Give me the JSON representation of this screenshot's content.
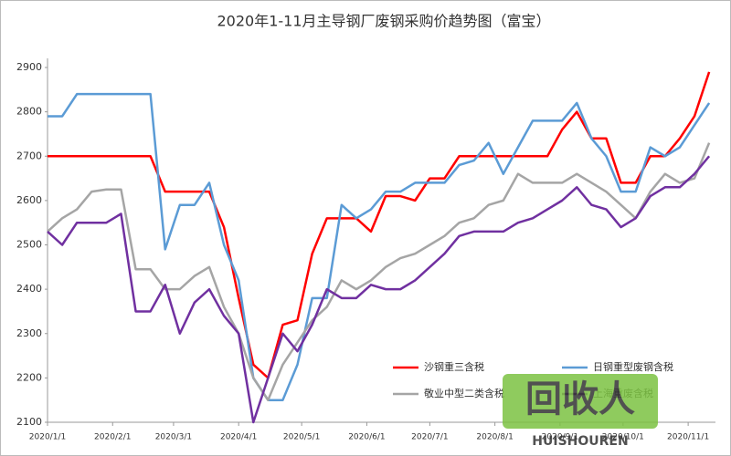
{
  "chart_data": {
    "type": "line",
    "title": "2020年1-11月主导钢厂废钢采购价趋势图（富宝）",
    "x": [
      "2020/1/1",
      "2020/1/8",
      "2020/1/15",
      "2020/1/22",
      "2020/1/29",
      "2020/2/5",
      "2020/2/12",
      "2020/2/19",
      "2020/2/26",
      "2020/3/4",
      "2020/3/11",
      "2020/3/18",
      "2020/3/25",
      "2020/4/1",
      "2020/4/8",
      "2020/4/15",
      "2020/4/22",
      "2020/4/29",
      "2020/5/6",
      "2020/5/13",
      "2020/5/20",
      "2020/5/27",
      "2020/6/3",
      "2020/6/10",
      "2020/6/17",
      "2020/6/24",
      "2020/7/1",
      "2020/7/8",
      "2020/7/15",
      "2020/7/22",
      "2020/7/29",
      "2020/8/5",
      "2020/8/12",
      "2020/8/19",
      "2020/8/26",
      "2020/9/2",
      "2020/9/9",
      "2020/9/16",
      "2020/9/23",
      "2020/9/30",
      "2020/10/7",
      "2020/10/14",
      "2020/10/21",
      "2020/10/28",
      "2020/11/4",
      "2020/11/11"
    ],
    "series": [
      {
        "name": "沙钢重三含税",
        "color": "#ff0000",
        "values": [
          2700,
          2700,
          2700,
          2700,
          2700,
          2700,
          2700,
          2700,
          2620,
          2620,
          2620,
          2620,
          2540,
          2380,
          2230,
          2200,
          2320,
          2330,
          2480,
          2560,
          2560,
          2560,
          2530,
          2610,
          2610,
          2600,
          2650,
          2650,
          2700,
          2700,
          2700,
          2700,
          2700,
          2700,
          2700,
          2760,
          2800,
          2740,
          2740,
          2640,
          2640,
          2700,
          2700,
          2740,
          2790,
          2890
        ]
      },
      {
        "name": "日钢重型废钢含税",
        "color": "#5b9bd5",
        "values": [
          2790,
          2790,
          2840,
          2840,
          2840,
          2840,
          2840,
          2840,
          2490,
          2590,
          2590,
          2640,
          2500,
          2420,
          2200,
          2150,
          2150,
          2230,
          2380,
          2380,
          2590,
          2560,
          2580,
          2620,
          2620,
          2640,
          2640,
          2640,
          2680,
          2690,
          2730,
          2660,
          2720,
          2780,
          2780,
          2780,
          2820,
          2740,
          2700,
          2620,
          2620,
          2720,
          2700,
          2720,
          2770,
          2820
        ]
      },
      {
        "name": "敬业中型二类含税",
        "color": "#a5a5a5",
        "values": [
          2530,
          2560,
          2580,
          2620,
          2625,
          2625,
          2445,
          2445,
          2400,
          2400,
          2430,
          2450,
          2360,
          2300,
          2200,
          2150,
          2230,
          2280,
          2330,
          2360,
          2420,
          2400,
          2420,
          2450,
          2470,
          2480,
          2500,
          2520,
          2550,
          2560,
          2590,
          2600,
          2660,
          2640,
          2640,
          2640,
          2660,
          2640,
          2620,
          2590,
          2560,
          2620,
          2660,
          2640,
          2650,
          2730
        ]
      },
      {
        "name": "上海重废含税",
        "color": "#7030a0",
        "values": [
          2530,
          2500,
          2550,
          2550,
          2550,
          2570,
          2350,
          2350,
          2410,
          2300,
          2370,
          2400,
          2340,
          2300,
          2100,
          2200,
          2300,
          2260,
          2320,
          2400,
          2380,
          2380,
          2410,
          2400,
          2400,
          2420,
          2450,
          2480,
          2520,
          2530,
          2530,
          2530,
          2550,
          2560,
          2580,
          2600,
          2630,
          2590,
          2580,
          2540,
          2560,
          2610,
          2630,
          2630,
          2660,
          2700
        ]
      }
    ],
    "xlim": [
      "2020/1/1",
      "2020/11/14"
    ],
    "xticks": [
      "2020/1/1",
      "2020/2/1",
      "2020/3/1",
      "2020/4/1",
      "2020/5/1",
      "2020/6/1",
      "2020/7/1",
      "2020/8/1",
      "2020/9/1",
      "2020/10/1",
      "2020/11/1"
    ],
    "ylim": [
      2100,
      2900
    ],
    "yticks": [
      2100,
      2200,
      2300,
      2400,
      2500,
      2600,
      2700,
      2800,
      2900
    ],
    "grid": false,
    "legend": "lower right",
    "watermark": {
      "icon": "回收人",
      "text": "HUISHOUREN"
    }
  }
}
